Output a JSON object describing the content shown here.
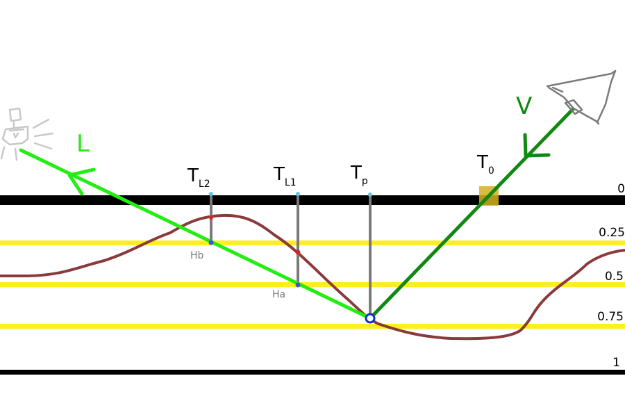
{
  "colors": {
    "reference_line": "#000000",
    "depth_line": "#ffee22",
    "height_curve": "#8a3a3a",
    "light_ray": "#22ee11",
    "view_ray": "#118811",
    "sample_stem": "#7a7a7a",
    "stem_cap": "#5ac8e6",
    "intersect_red": "#dd2222",
    "intersect_blue": "#4455cc",
    "t0_marker": "#d4b020",
    "label_L": "#22ee11",
    "label_V": "#118811"
  },
  "labels": {
    "L": "L",
    "V": "V",
    "TL2_main": "T",
    "TL2_sub": "L2",
    "TL1_main": "T",
    "TL1_sub": "L1",
    "Tp_main": "T",
    "Tp_sub": "p",
    "T0_main": "T",
    "T0_sub": "0",
    "Hb": "Hb",
    "Ha": "Ha"
  },
  "depth_levels": [
    "0",
    "0.25",
    "0.5",
    "0.75",
    "1"
  ],
  "icons": {
    "light": "lamp-icon",
    "viewer": "eye-icon"
  }
}
